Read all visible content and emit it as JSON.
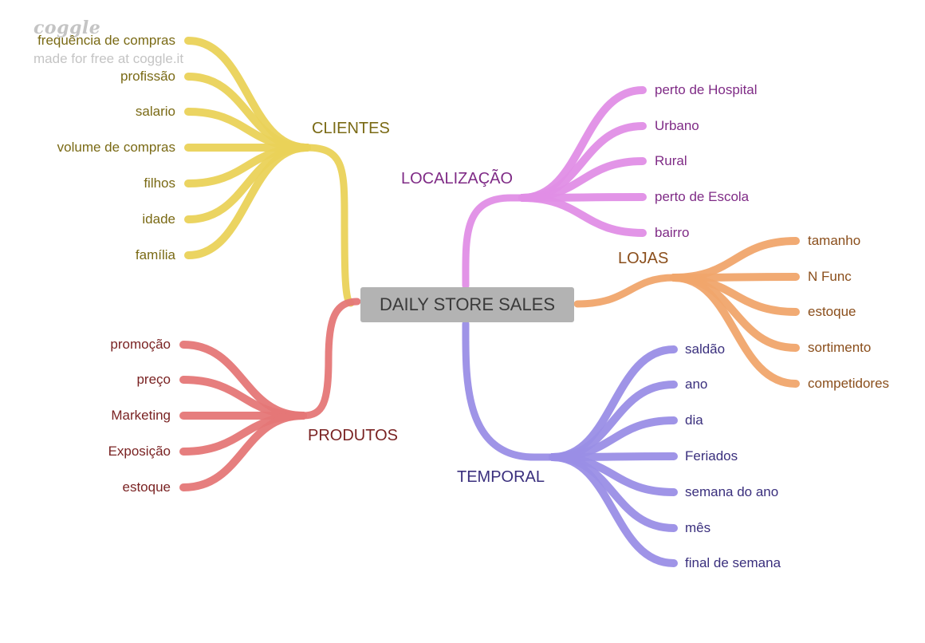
{
  "watermark": {
    "logo": "coggle",
    "text": "made for free at coggle.it"
  },
  "center": {
    "label": "DAILY STORE SALES"
  },
  "colors": {
    "clientes": "#ead258",
    "clientes_text": "#7a6a15",
    "localizacao": "#e08ee6",
    "localizacao_text": "#7f2b86",
    "lojas": "#f0a56c",
    "lojas_text": "#8a4e1b",
    "temporal": "#9a8ee6",
    "temporal_text": "#3a2f7d",
    "produtos": "#e57777",
    "produtos_text": "#7a2323"
  },
  "branches": {
    "clientes": {
      "label": "CLIENTES",
      "items": [
        "frequência de compras",
        "profissão",
        "salario",
        "volume de compras",
        "filhos",
        "idade",
        "família"
      ]
    },
    "localizacao": {
      "label": "LOCALIZAÇÃO",
      "items": [
        "perto de Hospital",
        "Urbano",
        "Rural",
        "perto de Escola",
        "bairro"
      ]
    },
    "lojas": {
      "label": "LOJAS",
      "items": [
        "tamanho",
        "N Func",
        "estoque",
        "sortimento",
        "competidores"
      ]
    },
    "temporal": {
      "label": "TEMPORAL",
      "items": [
        "saldão",
        "ano",
        "dia",
        "Feriados",
        "semana do ano",
        "mês",
        "final de semana"
      ]
    },
    "produtos": {
      "label": "PRODUTOS",
      "items": [
        "promoção",
        "preço",
        "Marketing",
        "Exposição",
        "estoque"
      ]
    }
  }
}
